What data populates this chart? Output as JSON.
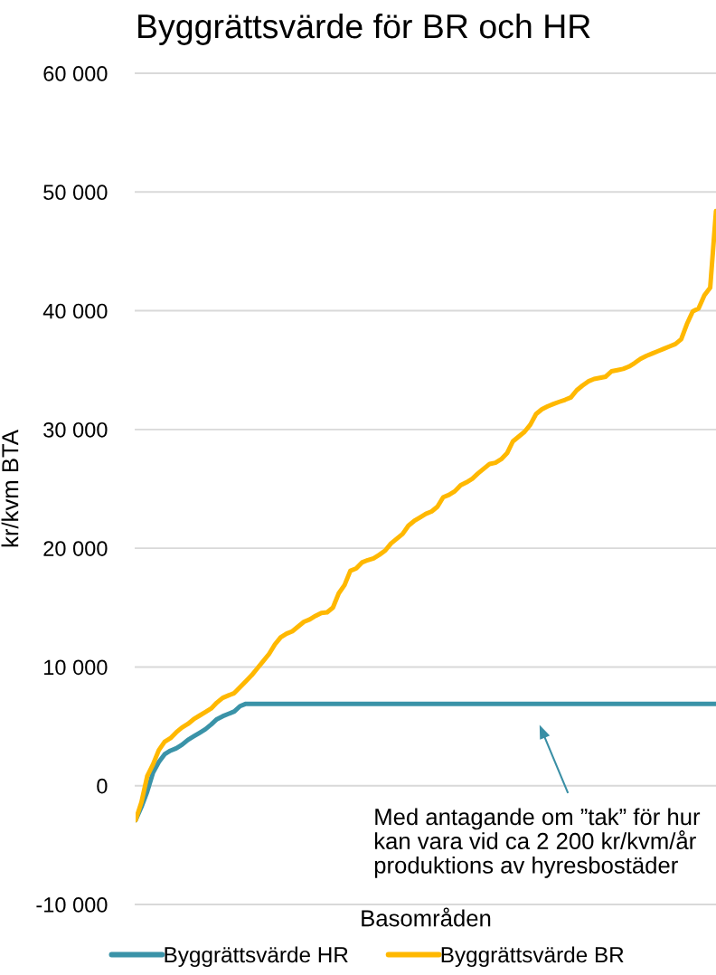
{
  "chart_data": {
    "type": "line",
    "title": "Byggrättsvärde för BR och HR",
    "xlabel": "Basområden",
    "ylabel": "kr/kvm BTA",
    "categories": [
      null,
      null,
      null,
      null,
      null,
      null,
      null,
      null,
      null,
      null,
      null,
      null,
      null,
      null,
      null,
      null,
      null,
      null,
      null,
      null,
      null,
      null,
      null,
      null,
      null,
      null,
      null,
      null,
      null,
      null,
      null,
      null,
      null,
      null,
      null,
      null,
      null,
      null,
      null,
      null,
      null,
      null,
      null,
      null,
      null,
      null,
      null,
      null,
      null,
      null,
      null,
      null,
      null,
      null,
      null,
      null,
      null,
      null,
      null,
      null,
      null,
      null,
      null,
      null,
      null,
      null,
      null,
      null,
      null,
      null,
      null,
      null,
      null,
      null,
      null,
      null,
      null,
      null,
      null,
      null,
      null,
      null,
      null,
      null,
      null,
      null,
      null,
      null,
      null,
      null,
      null,
      null,
      null,
      null,
      null,
      null,
      null,
      null,
      null,
      null,
      null
    ],
    "series": [
      {
        "name": "Byggrättsvärde HR",
        "color": "#3a93a8",
        "values": [
          -2900,
          -1800,
          -500,
          1100,
          2000,
          2650,
          2950,
          3150,
          3450,
          3850,
          4150,
          4450,
          4750,
          5150,
          5600,
          5850,
          6050,
          6250,
          6700,
          6900,
          6900,
          6900,
          6900,
          6900,
          6900,
          6900,
          6900,
          6900,
          6900,
          6900,
          6900,
          6900,
          6900,
          6900,
          6900,
          6900,
          6900,
          6900,
          6900,
          6900,
          6900,
          6900,
          6900,
          6900,
          6900,
          6900,
          6900,
          6900,
          6900,
          6900,
          6900,
          6900,
          6900,
          6900,
          6900,
          6900,
          6900,
          6900,
          6900,
          6900,
          6900,
          6900,
          6900,
          6900,
          6900,
          6900,
          6900,
          6900,
          6900,
          6900,
          6900,
          6900,
          6900,
          6900,
          6900,
          6900,
          6900,
          6900,
          6900,
          6900,
          6900,
          6900,
          6900,
          6900,
          6900,
          6900,
          6900,
          6900,
          6900,
          6900,
          6900,
          6900,
          6900,
          6900,
          6900,
          6900,
          6900,
          6900,
          6900,
          6900,
          6900
        ]
      },
      {
        "name": "Byggrättsvärde BR",
        "color": "#ffb800",
        "values": [
          -2900,
          -1400,
          800,
          1800,
          3000,
          3700,
          4000,
          4500,
          4900,
          5200,
          5600,
          5900,
          6200,
          6500,
          7000,
          7400,
          7600,
          7800,
          8300,
          8800,
          9300,
          9900,
          10500,
          11100,
          11900,
          12500,
          12800,
          13000,
          13400,
          13800,
          14000,
          14300,
          14550,
          14600,
          15000,
          16200,
          16900,
          18100,
          18300,
          18800,
          19000,
          19150,
          19450,
          19800,
          20400,
          20800,
          21200,
          21900,
          22300,
          22600,
          22900,
          23100,
          23500,
          24300,
          24500,
          24800,
          25300,
          25550,
          25850,
          26300,
          26700,
          27100,
          27200,
          27500,
          28000,
          29000,
          29400,
          29800,
          30400,
          31300,
          31700,
          31950,
          32150,
          32330,
          32500,
          32700,
          33300,
          33700,
          34050,
          34250,
          34350,
          34450,
          34900,
          35000,
          35100,
          35300,
          35600,
          35950,
          36200,
          36400,
          36600,
          36800,
          37000,
          37200,
          37600,
          38900,
          39950,
          40200,
          41300,
          41950,
          48400
        ]
      }
    ],
    "ylim": [
      -10000,
      60000
    ],
    "yticks": [
      {
        "value": -10000,
        "label": "-10 000"
      },
      0,
      {
        "value": 10000,
        "label": "10 000"
      },
      {
        "value": 20000,
        "label": "20 000"
      },
      {
        "value": 30000,
        "label": "30 000"
      },
      {
        "value": 40000,
        "label": "40 000"
      },
      {
        "value": 50000,
        "label": "50 000"
      },
      {
        "value": 60000,
        "label": "60 000"
      }
    ],
    "grid": "y",
    "legend": "bottom",
    "tick_labels": "y",
    "annotations": [
      "Med antagande om ”tak” för hur\nkan vara vid ca 2 200 kr/kvm/år\nproduktions av hyresbostäder"
    ]
  }
}
